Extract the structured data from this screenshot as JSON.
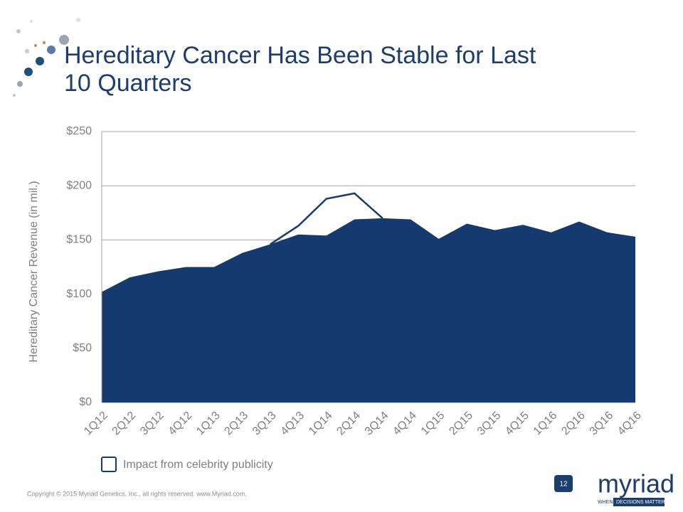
{
  "chart_data": {
    "type": "area",
    "title": [
      "Hereditary Cancer Has Been Stable for Last",
      "10 Quarters"
    ],
    "y_label": "Hereditary Cancer Revenue (in mil.)",
    "categories": [
      "1Q12",
      "2Q12",
      "3Q12",
      "4Q12",
      "1Q13",
      "2Q13",
      "3Q13",
      "4Q13",
      "1Q14",
      "2Q14",
      "3Q14",
      "4Q14",
      "1Q15",
      "2Q15",
      "3Q15",
      "4Q15",
      "1Q16",
      "2Q16",
      "3Q16",
      "4Q16"
    ],
    "series": [
      {
        "color": "#143a70",
        "values": [
          102,
          115.5,
          121,
          125,
          125,
          138,
          146,
          155,
          154,
          169,
          170,
          169,
          151,
          165,
          159,
          164,
          157,
          167,
          157,
          153
        ]
      },
      {
        "name": "Impact from celebrity publicity",
        "color": "#143a70",
        "values": [
          null,
          null,
          null,
          null,
          null,
          null,
          146,
          163,
          188,
          193,
          170,
          null,
          null,
          null,
          null,
          null,
          null,
          null,
          null,
          null
        ]
      }
    ],
    "ylim": [
      0,
      250
    ],
    "yticks": [
      {
        "value": 0,
        "label": "$0"
      },
      {
        "value": 50,
        "label": "$50"
      },
      {
        "value": 100,
        "label": "$100"
      },
      {
        "value": 150,
        "label": "$150"
      },
      {
        "value": 200,
        "label": "$200"
      },
      {
        "value": 250,
        "label": "$250"
      }
    ],
    "grid": true
  },
  "footer": {
    "copyright": "Copyright © 2015 Myriad Genetics, Inc., all rights reserved.  www.Myriad.com.",
    "page": "12",
    "logo": "myriad",
    "tagline_left": "WHEN",
    "tagline_right": "DECISIONS MATTER"
  }
}
